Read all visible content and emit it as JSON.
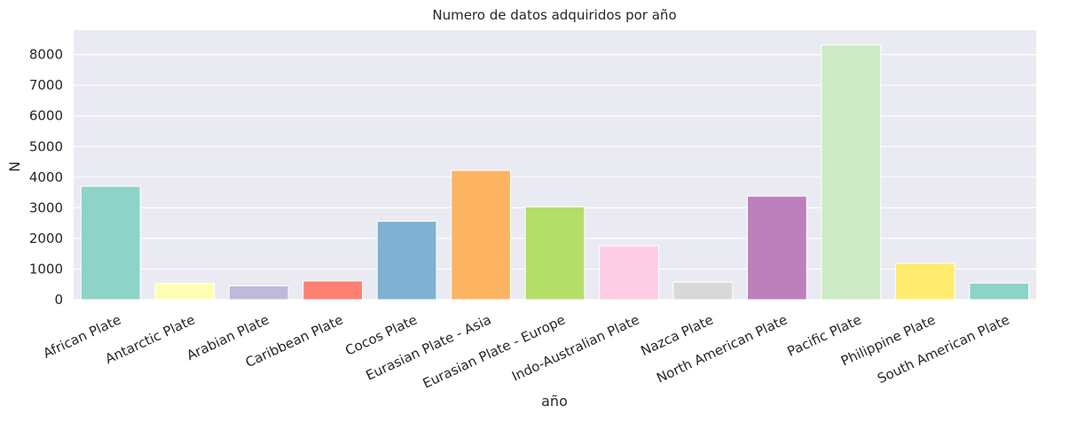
{
  "chart_data": {
    "type": "bar",
    "title": "Numero de datos adquiridos por año",
    "xlabel": "año",
    "ylabel": "N",
    "ylim": [
      0,
      8800
    ],
    "yticks": [
      0,
      1000,
      2000,
      3000,
      4000,
      5000,
      6000,
      7000,
      8000
    ],
    "grid": true,
    "categories": [
      "African Plate",
      "Antarctic Plate",
      "Arabian Plate",
      "Caribbean Plate",
      "Cocos Plate",
      "Eurasian Plate - Asia",
      "Eurasian Plate - Europe",
      "Indo-Australian Plate",
      "Nazca Plate",
      "North American Plate",
      "Pacific Plate",
      "Philippine Plate",
      "South American Plate"
    ],
    "values": [
      3700,
      540,
      450,
      610,
      2560,
      4220,
      3030,
      1760,
      570,
      3380,
      8320,
      1190,
      540
    ],
    "colors": [
      "#8dd3c7",
      "#ffffb3",
      "#bebada",
      "#fb8072",
      "#80b1d3",
      "#fdb462",
      "#b3de69",
      "#fccde5",
      "#d9d9d9",
      "#bc80bd",
      "#ccebc5",
      "#ffed6f",
      "#8dd3c7"
    ],
    "background": "#eaeaf2",
    "gridColor": "#ffffff"
  }
}
